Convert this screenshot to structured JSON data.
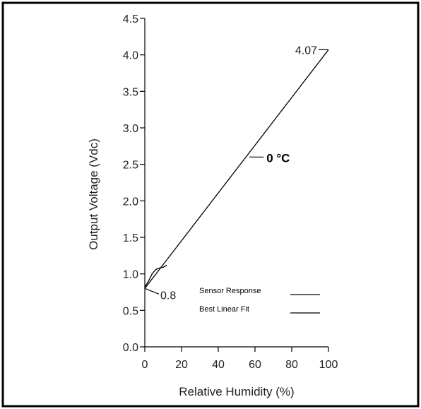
{
  "chart_data": {
    "type": "line",
    "xlabel": "Relative Humidity (%)",
    "ylabel": "Output Voltage (Vdc)",
    "xlim": [
      0,
      100
    ],
    "ylim": [
      0,
      4.5
    ],
    "xticks": [
      0,
      20,
      40,
      60,
      80,
      100
    ],
    "yticks": [
      0.0,
      0.5,
      1.0,
      1.5,
      2.0,
      2.5,
      3.0,
      3.5,
      4.0,
      4.5
    ],
    "xtick_labels": [
      "0",
      "20",
      "40",
      "60",
      "80",
      "100"
    ],
    "ytick_labels": [
      "0.0",
      "0.5",
      "1.0",
      "1.5",
      "2.0",
      "2.5",
      "3.0",
      "3.5",
      "4.0",
      "4.5"
    ],
    "grid": false,
    "legend_position": "lower-right",
    "series": [
      {
        "name": "Sensor Response",
        "x": [
          0,
          2,
          4,
          6,
          8,
          10,
          12
        ],
        "y": [
          0.82,
          0.9,
          1.0,
          1.06,
          1.08,
          1.09,
          1.12
        ],
        "color": "#000000"
      },
      {
        "name": "Best Linear Fit",
        "x": [
          0,
          100
        ],
        "y": [
          0.8,
          4.07
        ],
        "color": "#000000"
      }
    ],
    "annotations": [
      {
        "text": "4.07",
        "x": 100,
        "y": 4.07
      },
      {
        "text": "0.8",
        "x": 0,
        "y": 0.8
      },
      {
        "text": "0 °C",
        "x": 57,
        "y": 2.6
      }
    ]
  }
}
